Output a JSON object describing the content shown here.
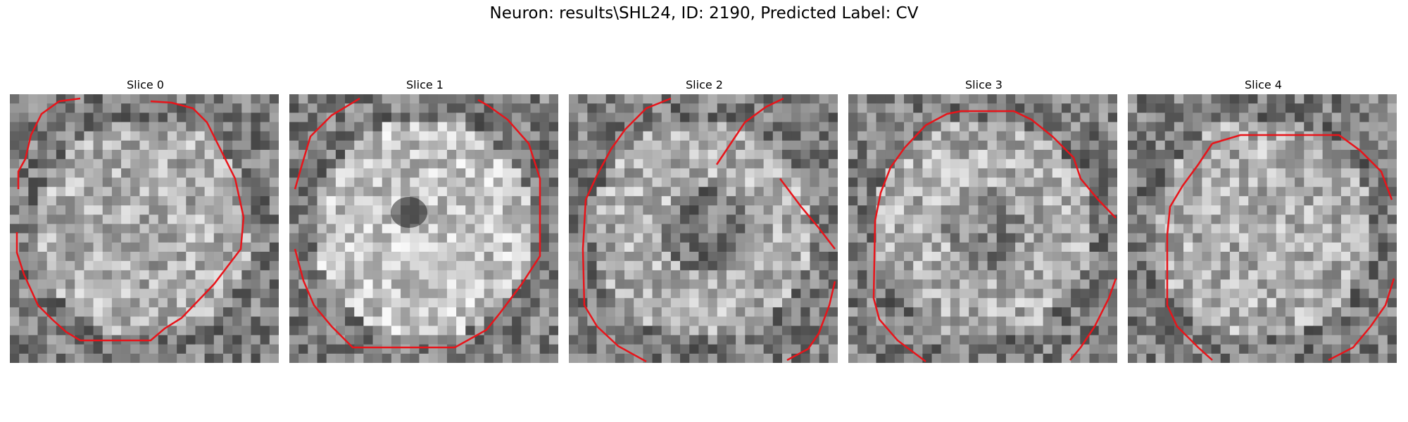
{
  "figure": {
    "title": "Neuron: results\\SHL24, ID: 2190, Predicted Label: CV"
  },
  "panels": [
    {
      "title": "Slice 0"
    },
    {
      "title": "Slice 1"
    },
    {
      "title": "Slice 2"
    },
    {
      "title": "Slice 3"
    },
    {
      "title": "Slice 4"
    }
  ],
  "colors": {
    "contour": "#e8141a",
    "background": "#ffffff"
  }
}
